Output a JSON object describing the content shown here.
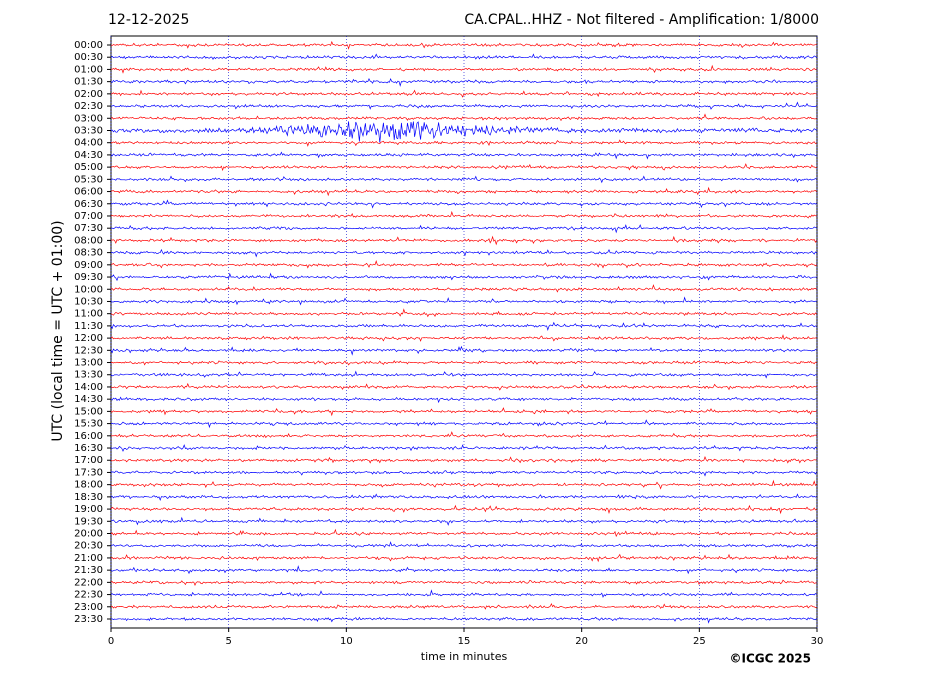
{
  "chart_data": {
    "type": "helicorder",
    "date": "12-12-2025",
    "title": "CA.CPAL..HHZ - Not filtered - Amplification: 1/8000",
    "ylabel": "UTC (local time = UTC + 01:00)",
    "xlabel": "time in minutes",
    "credit": "©ICGC 2025",
    "categories": [
      "00:00",
      "00:30",
      "01:00",
      "01:30",
      "02:00",
      "02:30",
      "03:00",
      "03:30",
      "04:00",
      "04:30",
      "05:00",
      "05:30",
      "06:00",
      "06:30",
      "07:00",
      "07:30",
      "08:00",
      "08:30",
      "09:00",
      "09:30",
      "10:00",
      "10:30",
      "11:00",
      "11:30",
      "12:00",
      "12:30",
      "13:00",
      "13:30",
      "14:00",
      "14:30",
      "15:00",
      "15:30",
      "16:00",
      "16:30",
      "17:00",
      "17:30",
      "18:00",
      "18:30",
      "19:00",
      "19:30",
      "20:00",
      "20:30",
      "21:00",
      "21:30",
      "22:00",
      "22:30",
      "23:00",
      "23:30"
    ],
    "colors": [
      "#ff0000",
      "#0000ff"
    ],
    "xlim": [
      0,
      30
    ],
    "xticks": [
      0,
      5,
      10,
      15,
      20,
      25,
      30
    ],
    "grid": true
  }
}
